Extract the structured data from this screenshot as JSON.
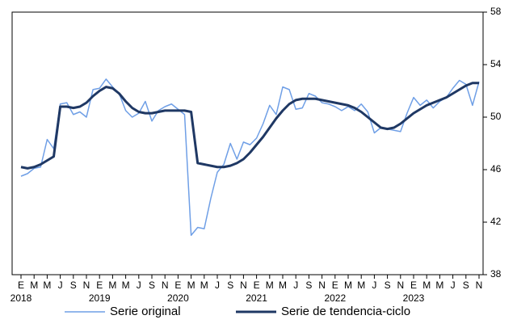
{
  "chart_data": {
    "type": "line",
    "categories": [
      "E",
      null,
      "M",
      null,
      "M",
      null,
      "J",
      null,
      "S",
      null,
      "N",
      null,
      "E",
      null,
      "M",
      null,
      "M",
      null,
      "J",
      null,
      "S",
      null,
      "N",
      null,
      "E",
      null,
      "M",
      null,
      "M",
      null,
      "J",
      null,
      "S",
      null,
      "N",
      null,
      "E",
      null,
      "M",
      null,
      "M",
      null,
      "J",
      null,
      "S",
      null,
      "N",
      null,
      "E",
      null,
      "M",
      null,
      "M",
      null,
      "J",
      null,
      "S",
      null,
      "N",
      null,
      "E",
      null,
      "M",
      null,
      "M",
      null,
      "J",
      null,
      "S",
      null,
      "N"
    ],
    "category_years": [
      "2018",
      null,
      null,
      null,
      null,
      null,
      null,
      null,
      null,
      null,
      null,
      null,
      "2019",
      null,
      null,
      null,
      null,
      null,
      null,
      null,
      null,
      null,
      null,
      null,
      "2020",
      null,
      null,
      null,
      null,
      null,
      null,
      null,
      null,
      null,
      null,
      null,
      "2021",
      null,
      null,
      null,
      null,
      null,
      null,
      null,
      null,
      null,
      null,
      null,
      "2022",
      null,
      null,
      null,
      null,
      null,
      null,
      null,
      null,
      null,
      null,
      null,
      "2023",
      null,
      null,
      null,
      null,
      null,
      null,
      null,
      null,
      null,
      null
    ],
    "series": [
      {
        "name": "Serie original",
        "color": "#6f9fe6",
        "width": 1.5,
        "values": [
          45.5,
          45.7,
          46.1,
          46.2,
          48.3,
          47.6,
          51.0,
          51.1,
          50.2,
          50.4,
          50.0,
          52.1,
          52.2,
          52.9,
          52.3,
          51.8,
          50.5,
          50.0,
          50.3,
          51.2,
          49.7,
          50.5,
          50.8,
          51.0,
          50.6,
          50.2,
          41.0,
          41.6,
          41.5,
          43.8,
          45.8,
          46.4,
          48.0,
          46.8,
          48.1,
          47.9,
          48.4,
          49.5,
          50.9,
          50.2,
          52.3,
          52.1,
          50.6,
          50.7,
          51.8,
          51.6,
          51.1,
          51.0,
          50.8,
          50.5,
          50.8,
          50.5,
          51.0,
          50.4,
          48.8,
          49.2,
          49.1,
          49.0,
          48.9,
          50.3,
          51.5,
          50.9,
          51.3,
          50.7,
          51.2,
          51.5,
          52.2,
          52.8,
          52.5,
          50.9,
          52.7
        ]
      },
      {
        "name": "Serie de tendencia-ciclo",
        "color": "#1f3864",
        "width": 3,
        "values": [
          46.2,
          46.1,
          46.2,
          46.4,
          46.7,
          47.0,
          50.8,
          50.8,
          50.7,
          50.8,
          51.1,
          51.6,
          52.0,
          52.3,
          52.2,
          51.8,
          51.2,
          50.7,
          50.4,
          50.3,
          50.3,
          50.4,
          50.5,
          50.5,
          50.5,
          50.5,
          50.4,
          46.5,
          46.4,
          46.3,
          46.2,
          46.2,
          46.3,
          46.5,
          46.8,
          47.3,
          47.9,
          48.5,
          49.2,
          49.9,
          50.5,
          51.0,
          51.3,
          51.4,
          51.4,
          51.4,
          51.3,
          51.2,
          51.1,
          51.0,
          50.9,
          50.7,
          50.4,
          50.0,
          49.6,
          49.2,
          49.1,
          49.2,
          49.5,
          49.9,
          50.3,
          50.6,
          50.9,
          51.1,
          51.3,
          51.5,
          51.8,
          52.1,
          52.4,
          52.6,
          52.6
        ]
      }
    ],
    "ylim": [
      38,
      58
    ],
    "yticks": [
      38,
      42,
      46,
      50,
      54,
      58
    ],
    "grid": false
  }
}
